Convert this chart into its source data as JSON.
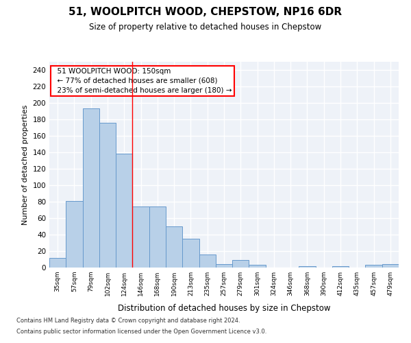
{
  "title": "51, WOOLPITCH WOOD, CHEPSTOW, NP16 6DR",
  "subtitle": "Size of property relative to detached houses in Chepstow",
  "xlabel": "Distribution of detached houses by size in Chepstow",
  "ylabel": "Number of detached properties",
  "bar_color": "#b8d0e8",
  "bar_edge_color": "#6699cc",
  "background_color": "#eef2f8",
  "categories": [
    "35sqm",
    "57sqm",
    "79sqm",
    "102sqm",
    "124sqm",
    "146sqm",
    "168sqm",
    "190sqm",
    "213sqm",
    "235sqm",
    "257sqm",
    "279sqm",
    "301sqm",
    "324sqm",
    "346sqm",
    "368sqm",
    "390sqm",
    "412sqm",
    "435sqm",
    "457sqm",
    "479sqm"
  ],
  "values": [
    12,
    81,
    193,
    176,
    138,
    74,
    74,
    50,
    35,
    16,
    4,
    9,
    3,
    0,
    0,
    2,
    0,
    2,
    0,
    3,
    4
  ],
  "ylim": [
    0,
    250
  ],
  "yticks": [
    0,
    20,
    40,
    60,
    80,
    100,
    120,
    140,
    160,
    180,
    200,
    220,
    240
  ],
  "property_line_index": 5,
  "annotation_text": "  51 WOOLPITCH WOOD: 150sqm\n  ← 77% of detached houses are smaller (608)\n  23% of semi-detached houses are larger (180) →",
  "footnote1": "Contains HM Land Registry data © Crown copyright and database right 2024.",
  "footnote2": "Contains public sector information licensed under the Open Government Licence v3.0."
}
